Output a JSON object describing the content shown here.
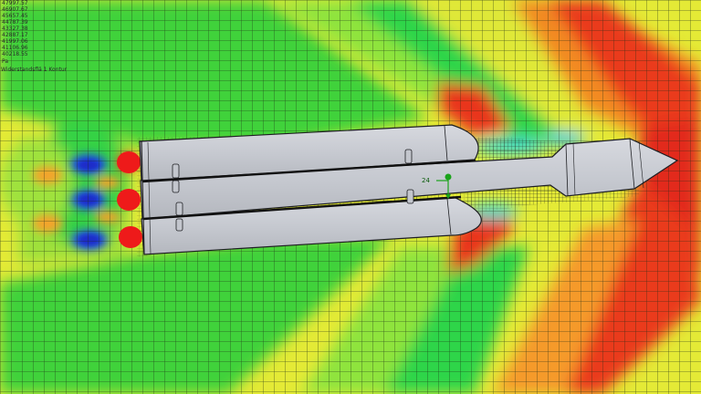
{
  "legend": {
    "values": [
      "47997.57",
      "46907.67",
      "45657.45",
      "44787.39",
      "43327.38",
      "42887.17",
      "41997.06",
      "41106.96",
      "40218.55"
    ],
    "unit": "Pa",
    "plot_name": "Widerstandsflä 1 Kontur"
  },
  "triad": {
    "label": "24"
  },
  "colors": {
    "background_field": "#e4ea36",
    "mesh_line": "#1c2a14",
    "body": "#c9ccd3",
    "body_edge": "#1d1e22",
    "nozzle": "#ee1a1a"
  },
  "icons": [
    "coordinate-triad-icon"
  ]
}
